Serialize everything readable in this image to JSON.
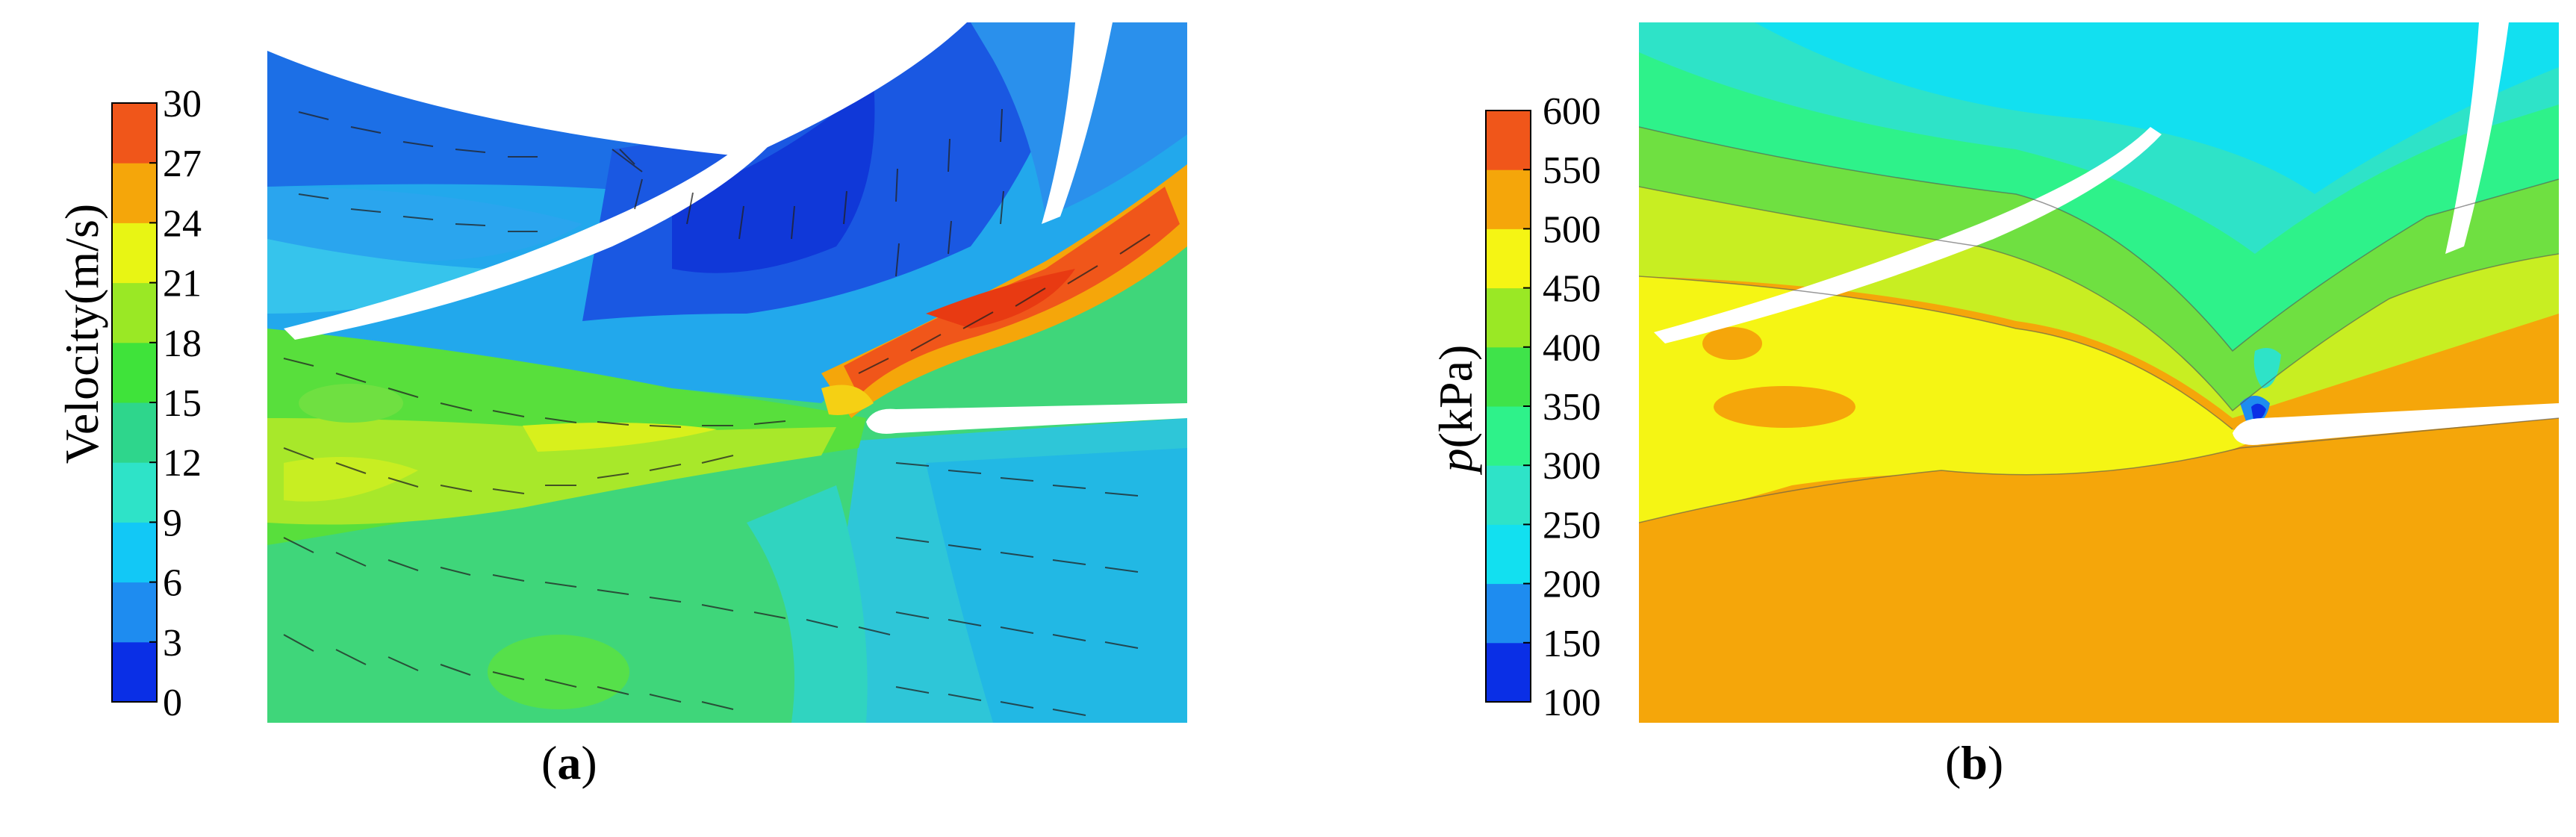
{
  "panels": [
    {
      "id": "a",
      "caption_letter": "a",
      "colorbar": {
        "title": "Velocity(m/s)",
        "ticks": [
          "30",
          "27",
          "24",
          "21",
          "18",
          "15",
          "12",
          "9",
          "6",
          "3",
          "0"
        ],
        "colors": [
          "#0a2fe6",
          "#1e8cf0",
          "#12c8f6",
          "#2ee3c8",
          "#2ed68c",
          "#3fe33a",
          "#9ae825",
          "#e8f514",
          "#f5a60a",
          "#f0561a"
        ]
      }
    },
    {
      "id": "b",
      "caption_letter": "b",
      "colorbar": {
        "title_var": "p",
        "title_unit": "(kPa)",
        "ticks": [
          "600",
          "550",
          "500",
          "450",
          "400",
          "350",
          "300",
          "250",
          "200",
          "150",
          "100"
        ],
        "colors": [
          "#0a2fe6",
          "#1e8cf0",
          "#12e0f0",
          "#2ee3c8",
          "#2ef28a",
          "#3fe34a",
          "#9ae825",
          "#f5f514",
          "#f5a60a",
          "#f0561a"
        ]
      }
    }
  ]
}
